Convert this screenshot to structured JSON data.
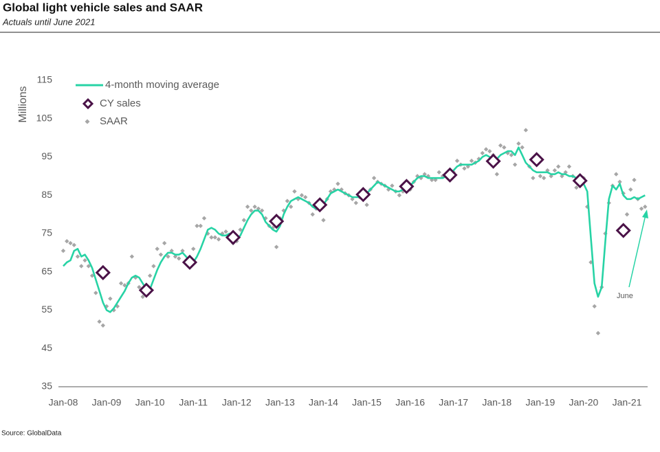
{
  "chart_data": {
    "type": "line",
    "title": "Global light vehicle sales and SAAR",
    "subtitle": "Actuals until June 2021",
    "y_label": "Millions",
    "source": "Source: GlobalData",
    "annotation": "June",
    "categories": [
      "Jan-08",
      null,
      null,
      null,
      null,
      null,
      null,
      null,
      null,
      null,
      null,
      null,
      "Jan-09",
      null,
      null,
      null,
      null,
      null,
      null,
      null,
      null,
      null,
      null,
      null,
      "Jan-10",
      null,
      null,
      null,
      null,
      null,
      null,
      null,
      null,
      null,
      null,
      null,
      "Jan-11",
      null,
      null,
      null,
      null,
      null,
      null,
      null,
      null,
      null,
      null,
      null,
      "Jan-12",
      null,
      null,
      null,
      null,
      null,
      null,
      null,
      null,
      null,
      null,
      null,
      "Jan-13",
      null,
      null,
      null,
      null,
      null,
      null,
      null,
      null,
      null,
      null,
      null,
      "Jan-14",
      null,
      null,
      null,
      null,
      null,
      null,
      null,
      null,
      null,
      null,
      null,
      "Jan-15",
      null,
      null,
      null,
      null,
      null,
      null,
      null,
      null,
      null,
      null,
      null,
      "Jan-16",
      null,
      null,
      null,
      null,
      null,
      null,
      null,
      null,
      null,
      null,
      null,
      "Jan-17",
      null,
      null,
      null,
      null,
      null,
      null,
      null,
      null,
      null,
      null,
      null,
      "Jan-18",
      null,
      null,
      null,
      null,
      null,
      null,
      null,
      null,
      null,
      null,
      null,
      "Jan-19",
      null,
      null,
      null,
      null,
      null,
      null,
      null,
      null,
      null,
      null,
      null,
      "Jan-20",
      null,
      null,
      null,
      null,
      null,
      null,
      null,
      null,
      null,
      null,
      null,
      "Jan-21",
      null,
      null,
      null,
      null,
      null
    ],
    "ylim": [
      35,
      115
    ],
    "yticks": [
      35,
      45,
      55,
      65,
      75,
      85,
      95,
      105,
      115
    ],
    "series": [
      {
        "name": "4-month moving average",
        "type": "line",
        "color": "#27d3a5",
        "values": [
          66.5,
          67.5,
          68,
          70.5,
          71,
          69,
          69.5,
          68,
          66,
          63,
          60,
          57,
          55,
          54.5,
          55.5,
          57,
          58.5,
          60,
          62,
          63.5,
          64,
          63.5,
          62,
          60.5,
          60.5,
          63,
          65.5,
          67.5,
          69,
          70,
          70,
          69.5,
          69.5,
          70,
          69,
          67.5,
          67.5,
          69,
          71,
          73.5,
          76,
          76.5,
          76,
          75,
          74.5,
          74.5,
          75,
          74,
          73.5,
          74.5,
          76.5,
          78.5,
          80,
          81,
          81,
          80,
          78,
          77,
          76,
          75.5,
          77,
          80,
          82,
          83.5,
          84,
          84.5,
          84,
          83.5,
          83,
          82,
          81.5,
          82,
          82.5,
          84,
          85.5,
          86,
          86.5,
          86,
          85.5,
          85,
          84.5,
          84.5,
          84.5,
          85,
          85.5,
          86.5,
          87.5,
          88.5,
          88,
          87.5,
          87,
          86.5,
          86,
          86,
          86.5,
          87,
          87.5,
          88.5,
          89.5,
          90,
          90,
          89.5,
          89.5,
          89.5,
          89.5,
          89.5,
          90,
          90.5,
          91.5,
          92.5,
          93,
          93,
          93,
          93,
          93.5,
          94,
          95,
          95.5,
          95,
          94,
          94.5,
          95.5,
          96,
          96.5,
          96.5,
          95.5,
          97.5,
          95.5,
          93.5,
          92.5,
          91.5,
          91,
          91,
          91,
          91,
          90.5,
          90.5,
          91,
          90.5,
          90.5,
          90,
          90,
          89.5,
          88.5,
          88,
          86,
          74,
          62,
          58.5,
          61,
          73,
          84,
          87.5,
          86.5,
          88,
          85,
          84,
          84,
          84.5,
          84,
          84.5,
          85
        ]
      },
      {
        "name": "CY sales",
        "type": "diamond",
        "color": "#4a1247",
        "values": [
          null,
          null,
          null,
          null,
          null,
          null,
          null,
          null,
          null,
          null,
          null,
          64.8,
          null,
          null,
          null,
          null,
          null,
          null,
          null,
          null,
          null,
          null,
          null,
          60.2,
          null,
          null,
          null,
          null,
          null,
          null,
          null,
          null,
          null,
          null,
          null,
          67.5,
          null,
          null,
          null,
          null,
          null,
          null,
          null,
          null,
          null,
          null,
          null,
          74,
          null,
          null,
          null,
          null,
          null,
          null,
          null,
          null,
          null,
          null,
          null,
          78.2,
          null,
          null,
          null,
          null,
          null,
          null,
          null,
          null,
          null,
          null,
          null,
          82.5,
          null,
          null,
          null,
          null,
          null,
          null,
          null,
          null,
          null,
          null,
          null,
          85.2,
          null,
          null,
          null,
          null,
          null,
          null,
          null,
          null,
          null,
          null,
          null,
          87.3,
          null,
          null,
          null,
          null,
          null,
          null,
          null,
          null,
          null,
          null,
          null,
          90.3,
          null,
          null,
          null,
          null,
          null,
          null,
          null,
          null,
          null,
          null,
          null,
          93.9,
          null,
          null,
          null,
          null,
          null,
          null,
          null,
          null,
          null,
          null,
          null,
          94.3,
          null,
          null,
          null,
          null,
          null,
          null,
          null,
          null,
          null,
          null,
          null,
          88.8,
          null,
          null,
          null,
          null,
          null,
          null,
          null,
          null,
          null,
          null,
          null,
          75.8,
          null,
          null,
          null,
          null,
          null,
          null
        ]
      },
      {
        "name": "SAAR",
        "type": "scatter",
        "color": "#a6a6a6",
        "values": [
          70.5,
          73,
          72.5,
          72,
          69,
          66.5,
          68,
          66.5,
          64,
          59.5,
          52,
          51,
          56,
          58,
          55,
          56,
          62,
          61.5,
          62,
          69,
          63.5,
          61,
          58.5,
          60,
          64,
          66.5,
          71,
          69.5,
          72.5,
          69,
          70.5,
          69,
          68.5,
          70.5,
          68,
          67,
          71,
          77,
          77,
          79,
          75,
          74,
          74,
          73.5,
          75,
          75.5,
          74,
          72.5,
          73,
          76,
          78.5,
          82,
          81,
          82,
          81.5,
          81,
          79,
          77,
          76.5,
          71.5,
          79,
          81,
          83.5,
          82,
          86,
          84,
          85,
          84.5,
          83,
          80,
          81.5,
          83,
          78.5,
          84,
          86,
          86.5,
          88,
          86.5,
          85.5,
          85,
          84,
          83,
          84.5,
          86,
          82.5,
          86.5,
          89.5,
          88.5,
          88,
          87.5,
          86.5,
          87.5,
          86,
          85,
          86,
          87,
          86.5,
          88.5,
          90,
          89.5,
          90.5,
          90,
          89,
          89,
          91,
          90,
          90.5,
          91,
          91,
          94,
          93,
          92,
          92.5,
          94,
          93.5,
          94.5,
          96,
          97,
          96.5,
          95.5,
          90.5,
          98,
          97.5,
          96,
          95.5,
          93,
          98.5,
          97.5,
          102,
          92.5,
          89.5,
          93.5,
          90,
          89.5,
          91.5,
          90,
          91.5,
          92.5,
          90,
          91,
          92.5,
          90,
          87,
          89,
          89.5,
          82,
          67.5,
          56,
          49,
          61,
          75,
          83,
          87.5,
          90.5,
          88.5,
          85.5,
          80,
          86.5,
          89,
          84,
          81.5,
          82
        ]
      }
    ]
  }
}
